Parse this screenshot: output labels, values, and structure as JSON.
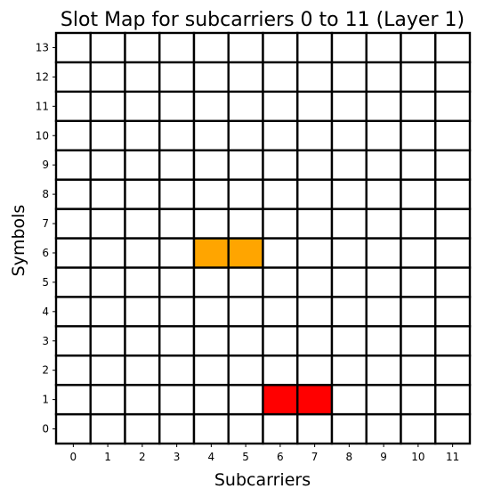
{
  "chart_data": {
    "type": "heatmap",
    "title": "Slot Map for subcarriers 0 to 11 (Layer 1)",
    "xlabel": "Subcarriers",
    "ylabel": "Symbols",
    "x_ticks": [
      "0",
      "1",
      "2",
      "3",
      "4",
      "5",
      "6",
      "7",
      "8",
      "9",
      "10",
      "11"
    ],
    "y_ticks": [
      "0",
      "1",
      "2",
      "3",
      "4",
      "5",
      "6",
      "7",
      "8",
      "9",
      "10",
      "11",
      "12",
      "13"
    ],
    "xlim": [
      -0.5,
      11.5
    ],
    "ylim": [
      -0.5,
      13.5
    ],
    "grid": true,
    "default_color": "#ffffff",
    "edge_color": "#000000",
    "colored_cells": [
      {
        "x": 4,
        "y": 6,
        "color": "#ffa500"
      },
      {
        "x": 5,
        "y": 6,
        "color": "#ffa500"
      },
      {
        "x": 6,
        "y": 1,
        "color": "#ff0000"
      },
      {
        "x": 7,
        "y": 1,
        "color": "#ff0000"
      }
    ]
  }
}
